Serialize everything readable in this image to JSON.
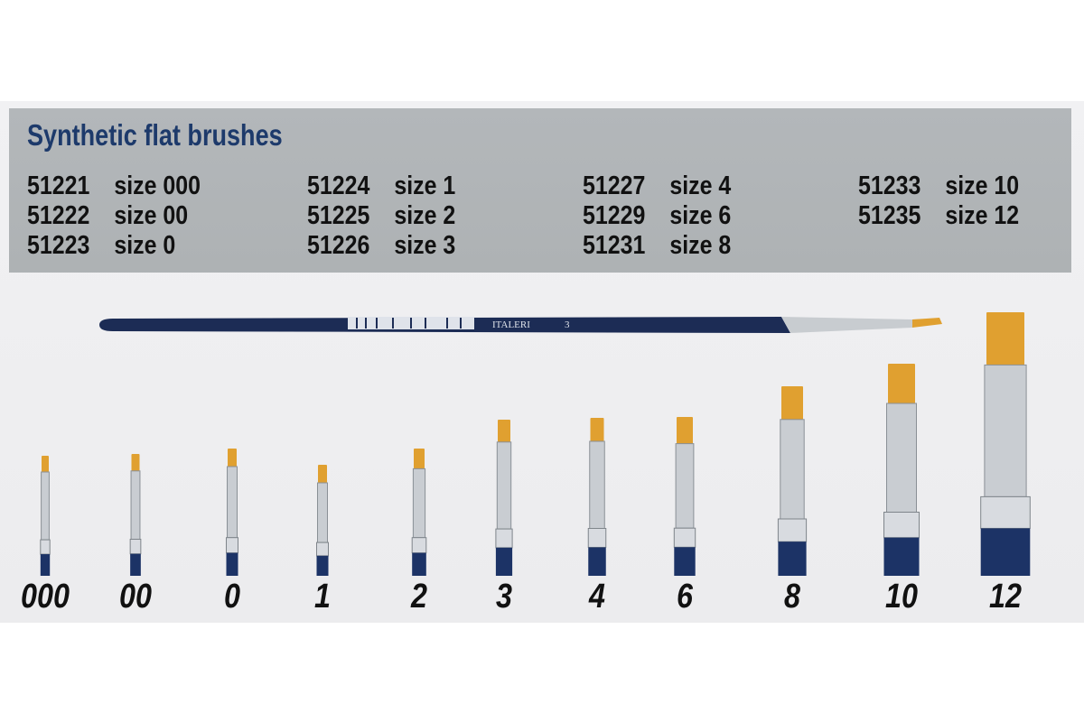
{
  "title": "Synthetic flat brushes",
  "columns": [
    [
      {
        "code": "51221",
        "size": "size 000"
      },
      {
        "code": "51222",
        "size": "size 00"
      },
      {
        "code": "51223",
        "size": "size 0"
      }
    ],
    [
      {
        "code": "51224",
        "size": "size 1"
      },
      {
        "code": "51225",
        "size": "size 2"
      },
      {
        "code": "51226",
        "size": "size 3"
      }
    ],
    [
      {
        "code": "51227",
        "size": "size 4"
      },
      {
        "code": "51229",
        "size": "size 6"
      },
      {
        "code": "51231",
        "size": "size 8"
      }
    ],
    [
      {
        "code": "51233",
        "size": "size 10"
      },
      {
        "code": "51235",
        "size": "size 12"
      }
    ]
  ],
  "long_brush": {
    "brand": "ITALERI",
    "number": "3"
  },
  "brush_labels": [
    "000",
    "00",
    "0",
    "1",
    "2",
    "3",
    "4",
    "6",
    "8",
    "10",
    "12"
  ],
  "colors": {
    "title": "#1d3a6b",
    "handle": "#1c3366",
    "bristle": "#e0a030",
    "ferrule": "#c8ccd0",
    "panel": "#b1b5b8"
  }
}
